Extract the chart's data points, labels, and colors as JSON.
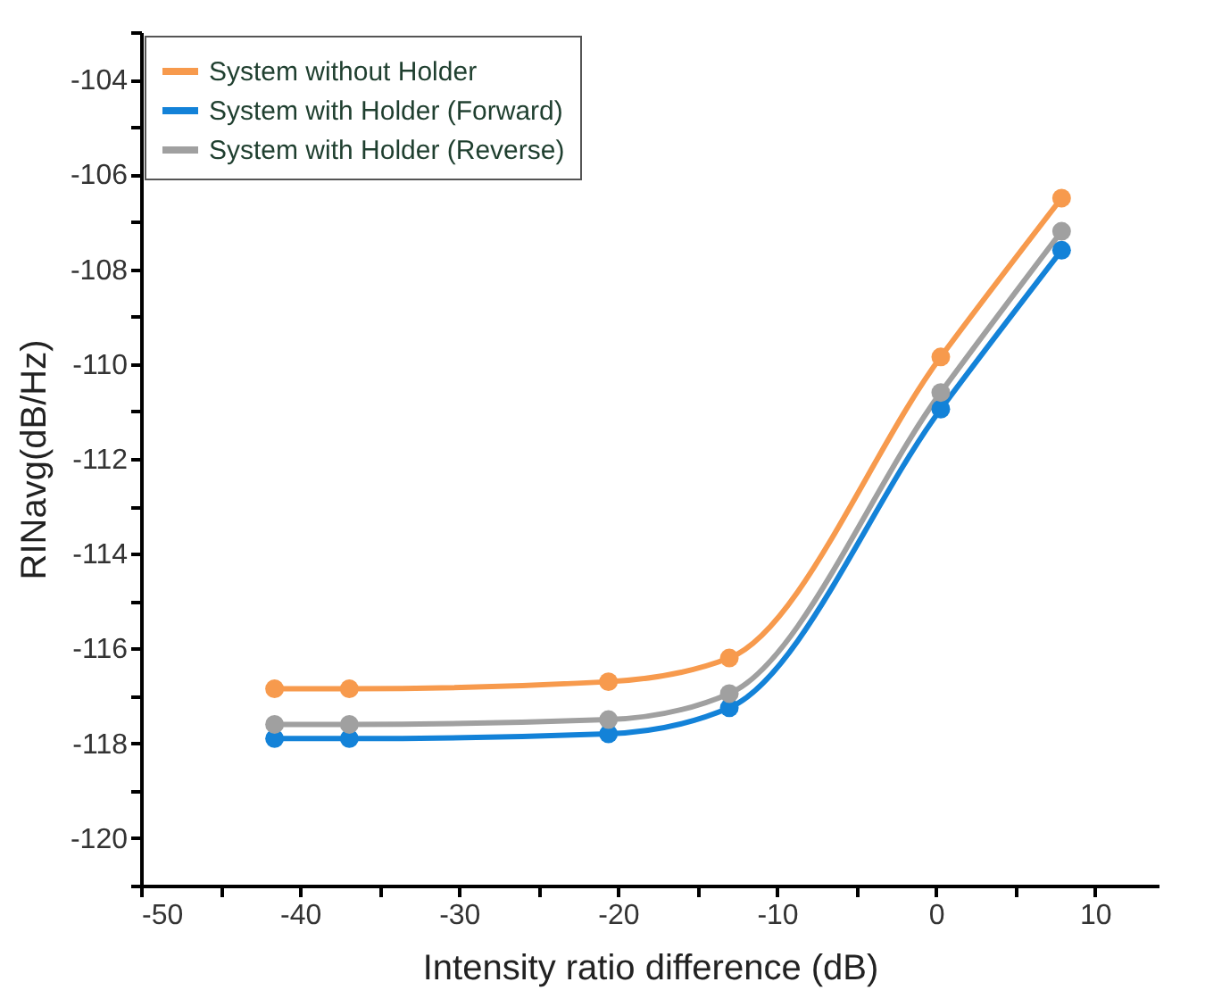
{
  "chart_data": {
    "type": "line",
    "xlabel": "Intensity ratio difference (dB)",
    "ylabel": "RINavg(dB/Hz)",
    "x": [
      -41.6,
      -36.9,
      -20.6,
      -13.0,
      0.3,
      7.9
    ],
    "series": [
      {
        "name": "System without Holder",
        "color": "#f79a4d",
        "values": [
          -116.85,
          -116.85,
          -116.7,
          -116.2,
          -109.85,
          -106.5
        ]
      },
      {
        "name": "System with Holder (Forward)",
        "color": "#1382d8",
        "values": [
          -117.9,
          -117.9,
          -117.8,
          -117.25,
          -110.95,
          -107.6
        ]
      },
      {
        "name": "System with Holder (Reverse)",
        "color": "#a0a0a0",
        "values": [
          -117.6,
          -117.6,
          -117.5,
          -116.95,
          -110.6,
          -107.2
        ]
      }
    ],
    "xlim": [
      -50,
      14
    ],
    "xticks": [
      -50,
      {
        "value": -45,
        "label": null
      },
      -40,
      {
        "value": -35,
        "label": null
      },
      -30,
      {
        "value": -25,
        "label": null
      },
      -20,
      {
        "value": -15,
        "label": null
      },
      -10,
      {
        "value": -5,
        "label": null
      },
      0,
      {
        "value": 5,
        "label": null
      },
      10
    ],
    "ylim": [
      -121,
      -103
    ],
    "yticks": [
      {
        "value": -121,
        "label": null
      },
      -120,
      {
        "value": -119,
        "label": null
      },
      -118,
      {
        "value": -117,
        "label": null
      },
      -116,
      {
        "value": -115,
        "label": null
      },
      -114,
      {
        "value": -113,
        "label": null
      },
      -112,
      {
        "value": -111,
        "label": null
      },
      -110,
      {
        "value": -109,
        "label": null
      },
      -108,
      {
        "value": -107,
        "label": null
      },
      -106,
      {
        "value": -105,
        "label": null
      },
      -104,
      {
        "value": -103,
        "label": null
      }
    ],
    "legend": "top left",
    "grid": false,
    "marker": "circle",
    "line_style": "solid"
  }
}
